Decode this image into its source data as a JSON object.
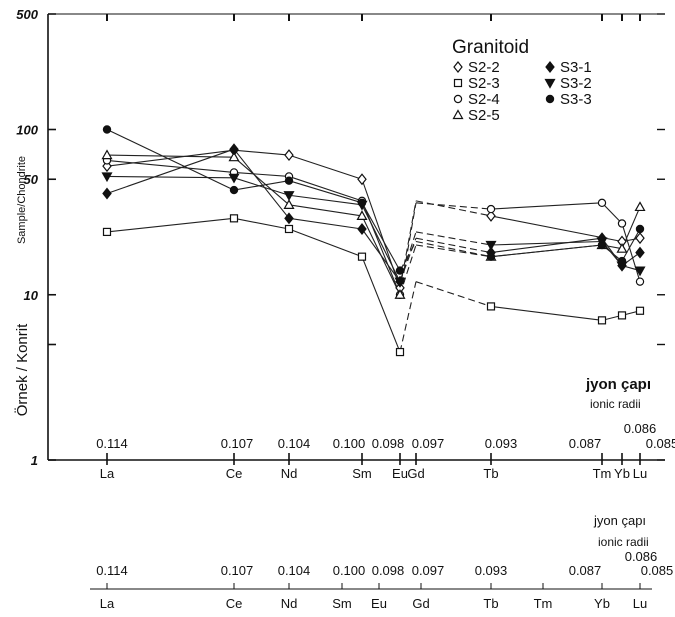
{
  "chart_data": {
    "type": "line",
    "yscale": "log",
    "ylim": [
      1,
      500
    ],
    "y_tick_labels": [
      {
        "value": 500,
        "label": "500"
      },
      {
        "value": 100,
        "label": "100"
      },
      {
        "value": 50,
        "label": "50"
      },
      {
        "value": 10,
        "label": "10"
      },
      {
        "value": 1,
        "label": "1"
      }
    ],
    "y_minor_ticks": [
      5
    ],
    "ylabel_primary": "Örnek / Konrit",
    "ylabel_secondary": "Sample/Chondrite",
    "legend_title": "Granitoid",
    "x_elements": [
      {
        "label": "La",
        "radius": "0.114"
      },
      {
        "label": "Ce",
        "radius": "0.107"
      },
      {
        "label": "Nd",
        "radius": "0.104"
      },
      {
        "label": "Sm",
        "radius": "0.100"
      },
      {
        "label": "Eu",
        "radius": "0.098"
      },
      {
        "label": "Gd",
        "radius": "0.097"
      },
      {
        "label": "Tb",
        "radius": "0.093"
      },
      {
        "label": "Tm",
        "radius": "0.087"
      },
      {
        "label": "Yb",
        "radius": "0.086"
      },
      {
        "label": "Lu",
        "radius": "0.085"
      }
    ],
    "radius_label_tr": "jyon çapı",
    "radius_label_en": "ionic radii",
    "series": [
      {
        "name": "S2-2",
        "marker": "diamond-open",
        "values": {
          "La": 60,
          "Ce": 75,
          "Nd": 70,
          "Sm": 50,
          "Eu": 11,
          "Gd": 37,
          "Tb": 30,
          "Yb": 21,
          "Lu": 22
        }
      },
      {
        "name": "S2-3",
        "marker": "square-open",
        "values": {
          "La": 24,
          "Ce": 29,
          "Nd": 25,
          "Sm": 17,
          "Eu": 4.5,
          "Gd": 12,
          "Tb": 8.5,
          "Tm": 7,
          "Yb": 7.5,
          "Lu": 8
        }
      },
      {
        "name": "S2-4",
        "marker": "circle-open",
        "values": {
          "La": 65,
          "Ce": 55,
          "Nd": 52,
          "Sm": 37,
          "Eu": 10,
          "Gd": 36,
          "Tb": 33,
          "Tm": 36,
          "Yb": 27,
          "Lu": 12
        }
      },
      {
        "name": "S2-5",
        "marker": "triangle-open",
        "values": {
          "La": 70,
          "Ce": 68,
          "Nd": 35,
          "Sm": 30,
          "Eu": 10,
          "Gd": 20,
          "Tb": 17,
          "Tm": 20,
          "Yb": 19,
          "Lu": 34
        }
      },
      {
        "name": "S3-1",
        "marker": "diamond-filled",
        "values": {
          "La": 41,
          "Ce": 76,
          "Nd": 29,
          "Sm": 25,
          "Eu": 12,
          "Gd": 22,
          "Tb": 18,
          "Tm": 22,
          "Yb": 15,
          "Lu": 18
        }
      },
      {
        "name": "S3-2",
        "marker": "triangle-filled",
        "values": {
          "La": 52,
          "Ce": 51,
          "Nd": 40,
          "Sm": 35,
          "Eu": 12,
          "Gd": 24,
          "Tb": 20,
          "Tm": 21,
          "Yb": 15,
          "Lu": 14
        }
      },
      {
        "name": "S3-3",
        "marker": "circle-filled",
        "values": {
          "La": 100,
          "Ce": 43,
          "Nd": 49,
          "Sm": 36,
          "Eu": 14,
          "Gd": 21,
          "Tb": 17,
          "Tm": 20,
          "Yb": 16,
          "Lu": 25
        }
      }
    ],
    "dashed_segments": [
      "Eu-Gd",
      "Gd-Tb"
    ]
  }
}
